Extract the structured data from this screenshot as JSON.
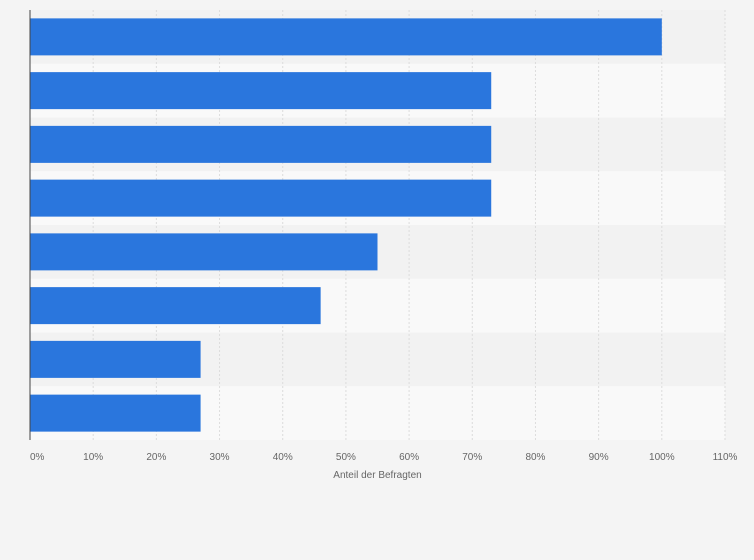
{
  "chart_data": {
    "type": "bar",
    "orientation": "horizontal",
    "title": "",
    "xlabel": "Anteil der Befragten",
    "ylabel": "",
    "categories": [
      "",
      "",
      "",
      "",
      "",
      "",
      "",
      ""
    ],
    "values": [
      100,
      73,
      73,
      73,
      55,
      46,
      27,
      27
    ],
    "xlim": [
      0,
      110
    ],
    "xticks": [
      0,
      10,
      20,
      30,
      40,
      50,
      60,
      70,
      80,
      90,
      100,
      110
    ],
    "xtick_labels": [
      "0%",
      "10%",
      "20%",
      "30%",
      "40%",
      "50%",
      "60%",
      "70%",
      "80%",
      "90%",
      "100%",
      "110%"
    ],
    "grid": true,
    "legend": "none"
  },
  "colors": {
    "background": "#f4f4f4",
    "plot_band_light": "#f9f9f9",
    "plot_band_dark": "#f2f2f2",
    "bar": "#2a76dd",
    "grid": "#dcdcdc",
    "axis": "#444444"
  }
}
